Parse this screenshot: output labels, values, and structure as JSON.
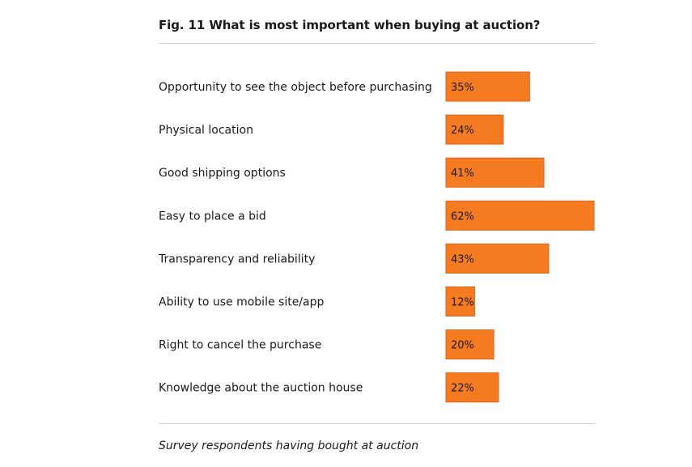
{
  "colors": {
    "bar": "#F47B20"
  },
  "chart_data": {
    "type": "bar",
    "orientation": "horizontal",
    "title": "Fig. 11 What is most important when buying at auction?",
    "caption": "Survey respondents having bought at auction",
    "categories": [
      "Opportunity to see the object before purchasing",
      "Physical location",
      "Good shipping options",
      "Easy to place a bid",
      "Transparency and reliability",
      "Ability to use mobile site/app",
      "Right to cancel the purchase",
      "Knowledge about the auction house"
    ],
    "values": [
      35,
      24,
      41,
      62,
      43,
      12,
      20,
      22
    ],
    "data_labels": [
      "35%",
      "24%",
      "41%",
      "62%",
      "43%",
      "12%",
      "20%",
      "22%"
    ],
    "unit": "%",
    "xlim": [
      0,
      62
    ],
    "grid": false,
    "legend": "none"
  }
}
